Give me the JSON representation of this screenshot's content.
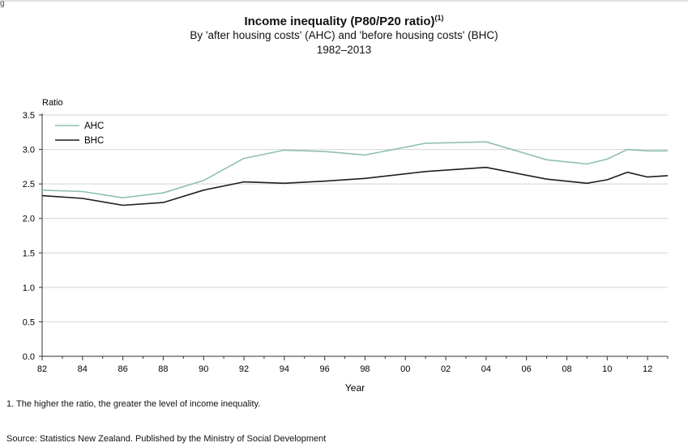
{
  "corner_text": "g",
  "chart_data": {
    "type": "line",
    "title": "Income inequality (P80/P20 ratio)",
    "title_superscript": "(1)",
    "subtitle": "By 'after housing costs' (AHC) and 'before housing costs' (BHC)",
    "date_range": "1982–2013",
    "xlabel": "Year",
    "ylabel": "Ratio",
    "xlim": [
      1982,
      2013
    ],
    "ylim": [
      0,
      3.5
    ],
    "grid": true,
    "legend_position": "top-left",
    "x_ticks": [
      {
        "value": 1982,
        "label": "82"
      },
      {
        "value": 1984,
        "label": "84"
      },
      {
        "value": 1986,
        "label": "86"
      },
      {
        "value": 1988,
        "label": "88"
      },
      {
        "value": 1990,
        "label": "90"
      },
      {
        "value": 1992,
        "label": "92"
      },
      {
        "value": 1994,
        "label": "94"
      },
      {
        "value": 1996,
        "label": "96"
      },
      {
        "value": 1998,
        "label": "98"
      },
      {
        "value": 2000,
        "label": "00"
      },
      {
        "value": 2002,
        "label": "02"
      },
      {
        "value": 2004,
        "label": "04"
      },
      {
        "value": 2006,
        "label": "06"
      },
      {
        "value": 2008,
        "label": "08"
      },
      {
        "value": 2010,
        "label": "10"
      },
      {
        "value": 2012,
        "label": "12"
      }
    ],
    "y_ticks": [
      "0.0",
      "0.5",
      "1.0",
      "1.5",
      "2.0",
      "2.5",
      "3.0",
      "3.5"
    ],
    "series": [
      {
        "name": "AHC",
        "color": "#8fbfb0",
        "x": [
          1982,
          1984,
          1986,
          1988,
          1990,
          1992,
          1994,
          1996,
          1998,
          2001,
          2004,
          2007,
          2009,
          2010,
          2011,
          2012,
          2013
        ],
        "y": [
          2.41,
          2.39,
          2.3,
          2.37,
          2.55,
          2.87,
          2.99,
          2.97,
          2.92,
          3.09,
          3.11,
          2.85,
          2.79,
          2.86,
          3.0,
          2.98,
          2.98
        ]
      },
      {
        "name": "BHC",
        "color": "#1e1e1e",
        "x": [
          1982,
          1984,
          1986,
          1988,
          1990,
          1992,
          1994,
          1996,
          1998,
          2001,
          2004,
          2007,
          2009,
          2010,
          2011,
          2012,
          2013
        ],
        "y": [
          2.33,
          2.29,
          2.19,
          2.23,
          2.41,
          2.53,
          2.51,
          2.54,
          2.58,
          2.68,
          2.74,
          2.57,
          2.51,
          2.56,
          2.67,
          2.6,
          2.62
        ]
      }
    ]
  },
  "footnote": "1. The higher the ratio, the greater the level of income inequality.",
  "source": "Source: Statistics New Zealand. Published by the Ministry of Social Development"
}
